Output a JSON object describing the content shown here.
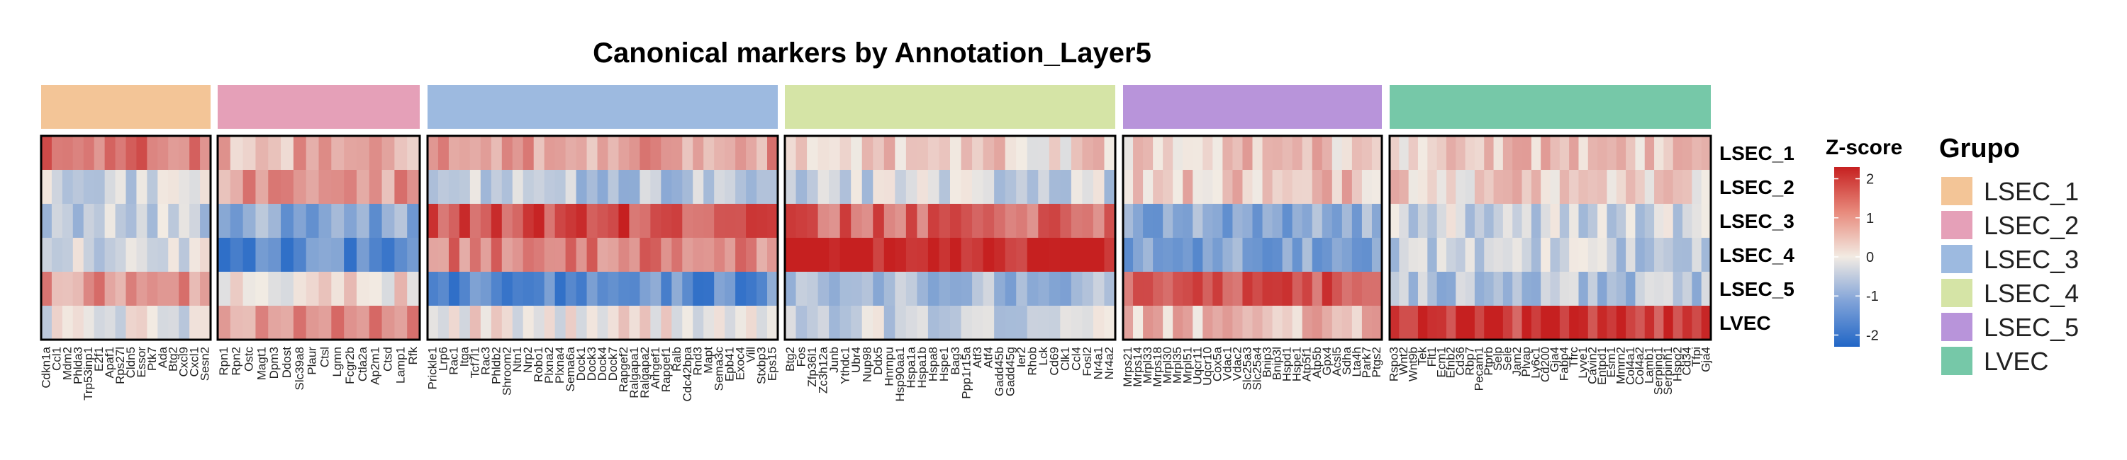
{
  "chart_data": {
    "type": "heatmap",
    "title": "Canonical markers by Annotation_Layer5",
    "rows": [
      "LSEC_1",
      "LSEC_2",
      "LSEC_3",
      "LSEC_4",
      "LSEC_5",
      "LVEC"
    ],
    "groups": [
      {
        "name": "LSEC_1",
        "color": "#F3C597",
        "genes": [
          "Cdkn1a",
          "Ccl1",
          "Mdm2",
          "Phlda3",
          "Trp53inp1",
          "E2f1",
          "Apaf1",
          "Rps27l",
          "Cldn5",
          "Essor",
          "Ptk7",
          "Ada",
          "Btg2",
          "Cxcl9",
          "Cxcl1",
          "Sesn2"
        ]
      },
      {
        "name": "LSEC_2",
        "color": "#E5A0B8",
        "genes": [
          "Rpn1",
          "Rpn2",
          "Ostc",
          "Magt1",
          "Dpm3",
          "Ddost",
          "Slc39a8",
          "Plaur",
          "Ctsl",
          "Lgmn",
          "Fcgr2b",
          "Ctla2a",
          "Ap2m1",
          "Ctsd",
          "Lamp1",
          "Rfk"
        ]
      },
      {
        "name": "LSEC_3",
        "color": "#9DBAE0",
        "genes": [
          "Prickle1",
          "Lrp6",
          "Rac1",
          "Itga",
          "Tcf7l1",
          "Rac3",
          "Phldb2",
          "Shroom2",
          "Ntn1",
          "Nrp2",
          "Robo1",
          "Plxna2",
          "Plxna4",
          "Sema6a",
          "Dock1",
          "Dock3",
          "Dock4",
          "Dock7",
          "Rapgef2",
          "Ralgapa1",
          "Ralgapa2",
          "Arhgef1",
          "Rapgef1",
          "Ralb",
          "Cdc42bpa",
          "Rnd3",
          "Mapt",
          "Sema3c",
          "Epb41",
          "Exoc4",
          "Vill",
          "Stxbp3",
          "Eps15"
        ]
      },
      {
        "name": "LSEC_4",
        "color": "#D5E4A6",
        "genes": [
          "Btg2",
          "Fos",
          "Zfp36l1",
          "Zc3h12a",
          "Junb",
          "Ythdc1",
          "Ubr4",
          "Nup98",
          "Ddx5",
          "Hnrnpu",
          "Hsp90aa1",
          "Hspa1a",
          "Hspa1b",
          "Hspa8",
          "Hspe1",
          "Bag3",
          "Ppp1r15a",
          "Atf3",
          "Atf4",
          "Gadd45b",
          "Gadd45g",
          "Ier2",
          "Rhob",
          "Lck",
          "Cd69",
          "Clk1",
          "Ccl4",
          "Fosl2",
          "Nr4a1",
          "Nr4a2"
        ]
      },
      {
        "name": "LSEC_5",
        "color": "#B894DA",
        "genes": [
          "Mrps21",
          "Mrps14",
          "Mrpl33",
          "Mrps18",
          "Mrpl30",
          "Mrpl35",
          "Mrpl51",
          "Uqcr11",
          "Uqcr10",
          "Cox5a",
          "Vdac1",
          "Vdac2",
          "Slc25a3",
          "Slc25a4",
          "Bnip3",
          "Bnip3l",
          "Hspd1",
          "Hspe1",
          "Atp5f1",
          "Atp5b",
          "Gpx4",
          "Acsl5",
          "Sdha",
          "Lta4h",
          "Park7",
          "Ptgs2"
        ]
      },
      {
        "name": "LVEC",
        "color": "#76C8A8",
        "genes": [
          "Rspo3",
          "Wnt2",
          "Wnt9b",
          "Tek",
          "Flt1",
          "Ecm1",
          "Efnb2",
          "Cd36",
          "Rbp7",
          "Pecam1",
          "Ptprb",
          "Selp",
          "Sele",
          "Jam2",
          "Plvap",
          "Ly6c1",
          "Cd200",
          "Gja4",
          "Fabp4",
          "Tfrc",
          "Lyve1",
          "Cavin2",
          "Entpd1",
          "Esm1",
          "Mmrn2",
          "Col4a1",
          "Col4a2",
          "Lamb1",
          "Serping1",
          "Serpinh1",
          "Hspg2",
          "Cd34",
          "Tfpi",
          "Gja4"
        ]
      }
    ],
    "color_scale": {
      "title": "Z-score",
      "range": [
        -2.3,
        2.3
      ],
      "ticks": [
        2,
        1,
        0,
        -1,
        -2
      ],
      "colors": [
        "#2166C6",
        "#F2EBE3",
        "#C62020"
      ]
    },
    "legend": {
      "title": "Grupo",
      "placement": "right"
    },
    "row_profiles": {
      "LSEC_1": [
        1.4,
        0.7,
        0.9,
        0.3,
        0.4,
        0.4
      ],
      "LSEC_2": [
        -0.4,
        0.9,
        -0.6,
        -0.4,
        0.4,
        0.3
      ],
      "LSEC_3": [
        -0.5,
        -1.1,
        1.8,
        1.5,
        -1.1,
        -0.4
      ],
      "LSEC_4": [
        -0.3,
        -1.6,
        1.2,
        2.3,
        -1.2,
        -0.5
      ],
      "LSEC_5": [
        0.9,
        0.1,
        -1.6,
        -0.9,
        1.7,
        -0.7
      ],
      "LVEC": [
        -0.2,
        1.0,
        0.0,
        -0.4,
        0.5,
        2.0
      ]
    }
  }
}
